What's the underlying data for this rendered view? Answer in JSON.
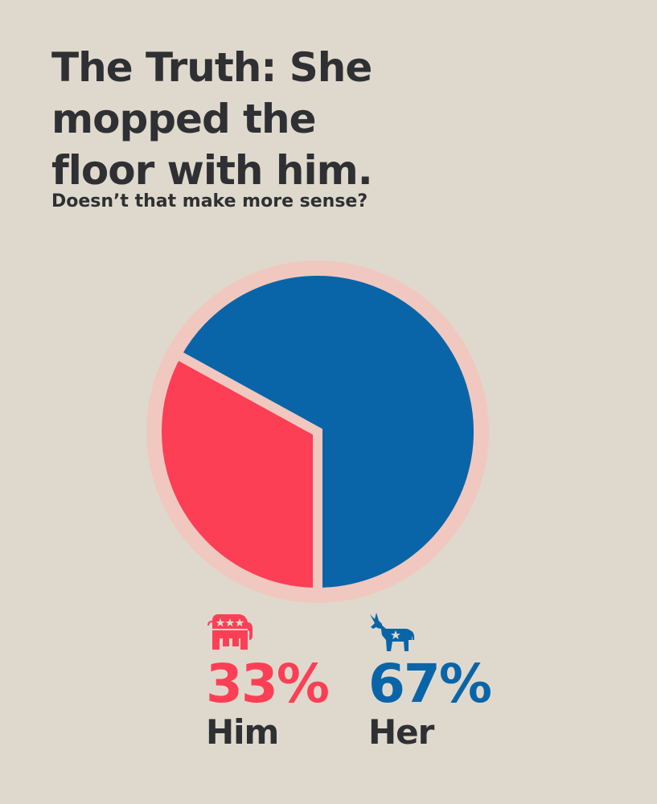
{
  "headline": {
    "line1": "The Truth: She",
    "line2": "mopped the",
    "line3": "floor with him."
  },
  "subtitle": "Doesn’t that make more sense?",
  "chart_data": {
    "type": "pie",
    "title": "The Truth: She mopped the floor with him.",
    "subtitle": "Doesn’t that make more sense?",
    "slices": [
      {
        "label": "Him",
        "value": 33,
        "display": "33%",
        "color": "#fc3f55",
        "icon": "republican-elephant-icon"
      },
      {
        "label": "Her",
        "value": 67,
        "display": "67%",
        "color": "#0a65a8",
        "icon": "democratic-donkey-icon"
      }
    ],
    "legend_placement": "bottom"
  },
  "colors": {
    "background": "#dfd9cd",
    "him": "#fc3f55",
    "her": "#0a65a8",
    "text": "#2f3033",
    "pie_border": "#f0c8c0"
  }
}
